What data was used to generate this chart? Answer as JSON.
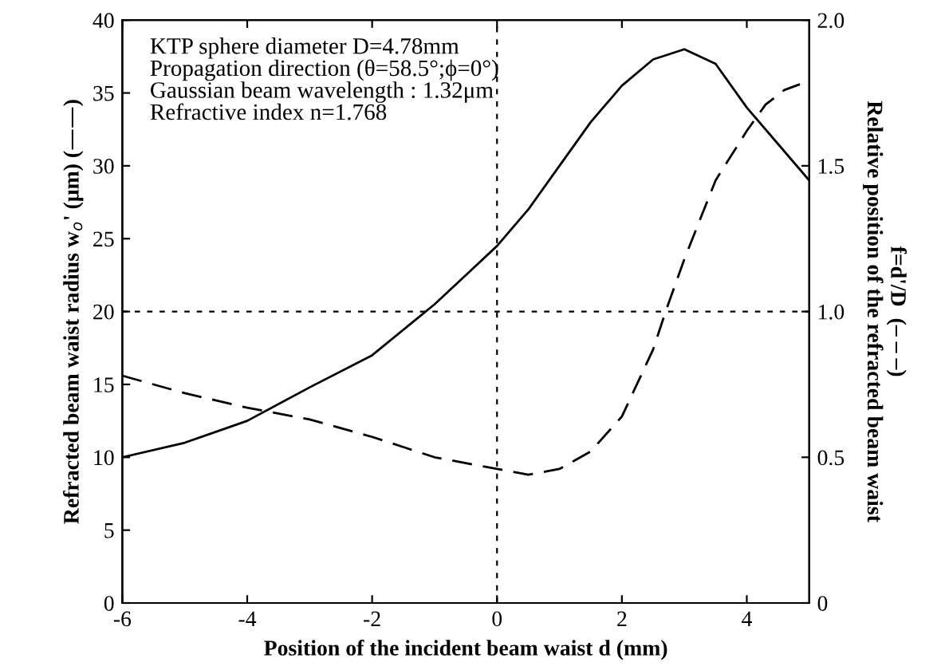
{
  "chart_data": {
    "type": "line",
    "xlabel": "Position of the incident beam waist d (mm)",
    "ylabel": "Refracted beam waist radius w$_{o}$' (μm) (——)",
    "y2label": "f=d'/D  (– – –)\nRelative position of the refracted beam waist",
    "annotations": [
      "KTP sphere diameter D=4.78mm\nPropagation direction (θ=58.5°;ϕ=0°)\nGaussian beam wavelength : 1.32μm\nRefractive index n=1.768"
    ],
    "series": [
      {
        "color": "#000000",
        "line_style": "solid",
        "x": [
          -6,
          -5,
          -4,
          -3,
          -2,
          -1,
          -0.5,
          0,
          0.5,
          1,
          1.5,
          2,
          2.5,
          3,
          3.5,
          4,
          4.5,
          5
        ],
        "values": [
          10,
          11,
          12.5,
          14.8,
          17,
          20.5,
          22.5,
          24.5,
          27,
          30,
          33,
          35.5,
          37.3,
          38,
          37,
          34,
          31.5,
          29
        ]
      },
      {
        "color": "#000000",
        "line_style": "dashed",
        "axis": "y2",
        "x": [
          -6,
          -5,
          -4,
          -3,
          -2,
          -1,
          0,
          0.5,
          1,
          1.5,
          2,
          2.5,
          2.7,
          3,
          3.5,
          4,
          4.3,
          4.6,
          4.85
        ],
        "values": [
          0.78,
          0.72,
          0.67,
          0.63,
          0.57,
          0.5,
          0.46,
          0.44,
          0.46,
          0.52,
          0.64,
          0.87,
          1.0,
          1.18,
          1.45,
          1.62,
          1.71,
          1.76,
          1.78
        ]
      }
    ],
    "xlim": [
      -6,
      5
    ],
    "xticks": [
      -6,
      -4,
      -2,
      0,
      2,
      4
    ],
    "ylim": [
      0,
      40
    ],
    "yticks": [
      0,
      5,
      10,
      15,
      20,
      25,
      30,
      35,
      40
    ],
    "y2lim": [
      0,
      2
    ],
    "y2ticks": [
      0,
      {
        "value": 0.5,
        "label": "0.5"
      },
      {
        "value": 1,
        "label": "1.0"
      },
      {
        "value": 1.5,
        "label": "1.5"
      },
      {
        "value": 2,
        "label": "2.0"
      }
    ],
    "ref_lines": [
      {
        "axis": "y",
        "value": 20,
        "line_style": "dotted"
      },
      {
        "axis": "x",
        "value": 0,
        "line_style": "dotted"
      }
    ],
    "grid": false,
    "legend": false,
    "marker": "none"
  }
}
